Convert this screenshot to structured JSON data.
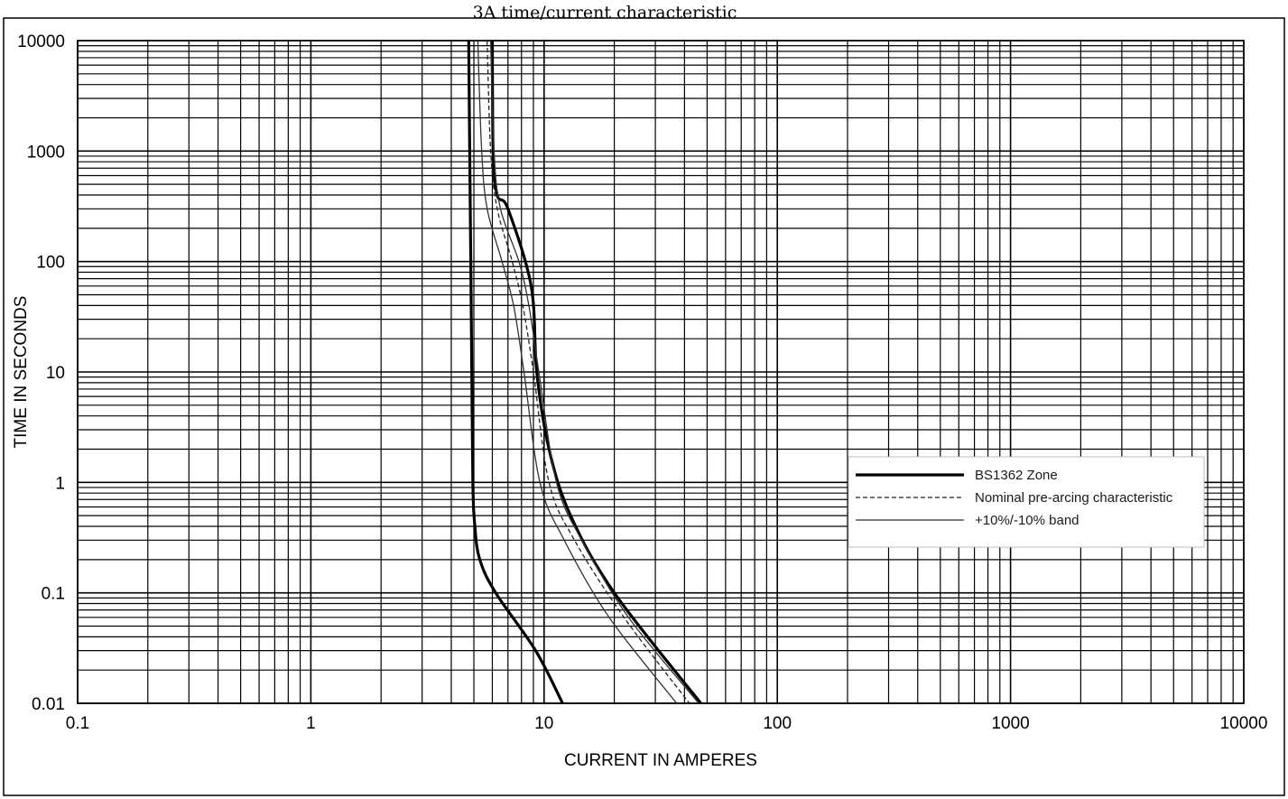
{
  "chart_data": {
    "type": "line",
    "title": "3A time/current characteristic",
    "xlabel": "CURRENT IN AMPERES",
    "ylabel": "TIME IN SECONDS",
    "xscale": "log",
    "yscale": "log",
    "xlim": [
      0.1,
      10000
    ],
    "ylim": [
      0.01,
      10000
    ],
    "xticks": [
      0.1,
      1,
      10,
      100,
      1000,
      10000
    ],
    "xtick_labels": [
      "0.1",
      "1",
      "10",
      "100",
      "1000",
      "10000"
    ],
    "yticks": [
      0.01,
      0.1,
      1,
      10,
      100,
      1000,
      10000
    ],
    "ytick_labels": [
      "0.01",
      "0.1",
      "1",
      "10",
      "100",
      "1000",
      "10000"
    ],
    "grid": true,
    "legend_position": "right",
    "legend": [
      {
        "label": "BS1362 Zone",
        "style": "thick solid"
      },
      {
        "label": "Nominal pre-arcing characteristic",
        "style": "dash-dot"
      },
      {
        "label": "+10%/-10% band",
        "style": "thin solid"
      }
    ],
    "series": [
      {
        "name": "BS1362 Zone",
        "style": "thick",
        "x": [
          4.75,
          4.8,
          4.85,
          4.9,
          4.95,
          5.05,
          5.3,
          6.2,
          9.2,
          12
        ],
        "y": [
          10000,
          1000,
          100,
          10,
          1,
          0.4,
          0.2,
          0.1,
          0.03,
          0.01
        ]
      },
      {
        "name": "BS1362 Zone",
        "style": "thick",
        "x": [
          6.0,
          6.05,
          6.3,
          7.0,
          8.8,
          9.3,
          10.5,
          13,
          20,
          47
        ],
        "y": [
          10000,
          1000,
          400,
          300,
          60,
          10,
          2,
          0.5,
          0.1,
          0.01
        ]
      },
      {
        "name": "Nominal pre-arcing characteristic",
        "style": "dash-dot",
        "x": [
          5.7,
          5.9,
          6.3,
          7.3,
          8.1,
          9.0,
          10.5,
          13.5,
          22,
          42
        ],
        "y": [
          10000,
          1000,
          300,
          100,
          40,
          10,
          1,
          0.3,
          0.06,
          0.01
        ]
      },
      {
        "name": "+10%/-10% band",
        "style": "thin",
        "x": [
          5.9,
          6.1,
          6.5,
          7.8,
          8.6,
          9.5,
          11.3,
          14.5,
          23,
          46
        ],
        "y": [
          10000,
          1000,
          300,
          100,
          40,
          10,
          1,
          0.3,
          0.06,
          0.01
        ]
      },
      {
        "name": "+10%/-10% band",
        "style": "thin",
        "x": [
          5.2,
          5.4,
          5.7,
          6.6,
          7.4,
          8.2,
          9.6,
          12.2,
          19,
          37
        ],
        "y": [
          10000,
          1000,
          300,
          100,
          40,
          10,
          1,
          0.3,
          0.06,
          0.01
        ]
      }
    ]
  }
}
